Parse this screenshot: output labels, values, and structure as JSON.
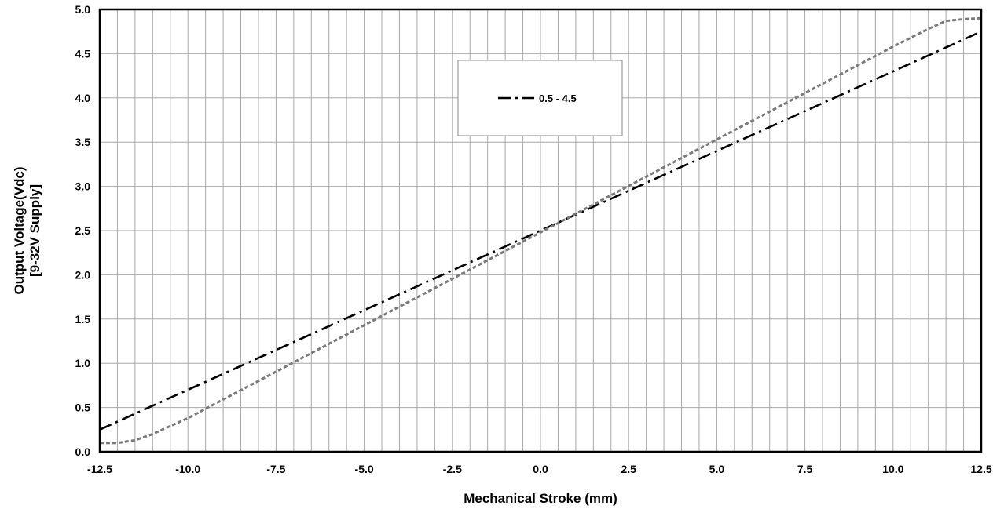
{
  "chart_data": {
    "type": "line",
    "title": "",
    "xlabel": "Mechanical Stroke (mm)",
    "ylabel_lines": [
      "Output Voltage(Vdc)",
      "[9-32V Supply]"
    ],
    "xlim": [
      -12.5,
      12.5
    ],
    "ylim": [
      0.0,
      5.0
    ],
    "x_ticks": [
      -12.5,
      -10.0,
      -7.5,
      -5.0,
      -2.5,
      0.0,
      2.5,
      5.0,
      7.5,
      10.0,
      12.5
    ],
    "x_tick_labels": [
      "-12.5",
      "-10.0",
      "-7.5",
      "-5.0",
      "-2.5",
      "0.0",
      "2.5",
      "5.0",
      "7.5",
      "10.0",
      "12.5"
    ],
    "y_ticks": [
      0.0,
      0.5,
      1.0,
      1.5,
      2.0,
      2.5,
      3.0,
      3.5,
      4.0,
      4.5,
      5.0
    ],
    "y_tick_labels": [
      "0.0",
      "0.5",
      "1.0",
      "1.5",
      "2.0",
      "2.5",
      "3.0",
      "3.5",
      "4.0",
      "4.5",
      "5.0"
    ],
    "x_grid_step": 0.5,
    "y_grid_step": 0.5,
    "grid": true,
    "legend_position": "top-center",
    "series": [
      {
        "name": "0.5 - 4.5",
        "style": "dash-dot",
        "color": "#000000",
        "in_legend": true,
        "points": [
          [
            -12.5,
            0.25
          ],
          [
            12.5,
            4.75
          ]
        ]
      },
      {
        "style": "dotted",
        "color": "#7a7a7a",
        "in_legend": false,
        "points": [
          [
            -12.5,
            0.1
          ],
          [
            -12.0,
            0.1
          ],
          [
            -11.5,
            0.13
          ],
          [
            -11.0,
            0.2
          ],
          [
            -10.0,
            0.38
          ],
          [
            10.0,
            4.58
          ],
          [
            11.0,
            4.78
          ],
          [
            11.5,
            4.87
          ],
          [
            12.0,
            4.89
          ],
          [
            12.5,
            4.9
          ]
        ]
      }
    ]
  }
}
